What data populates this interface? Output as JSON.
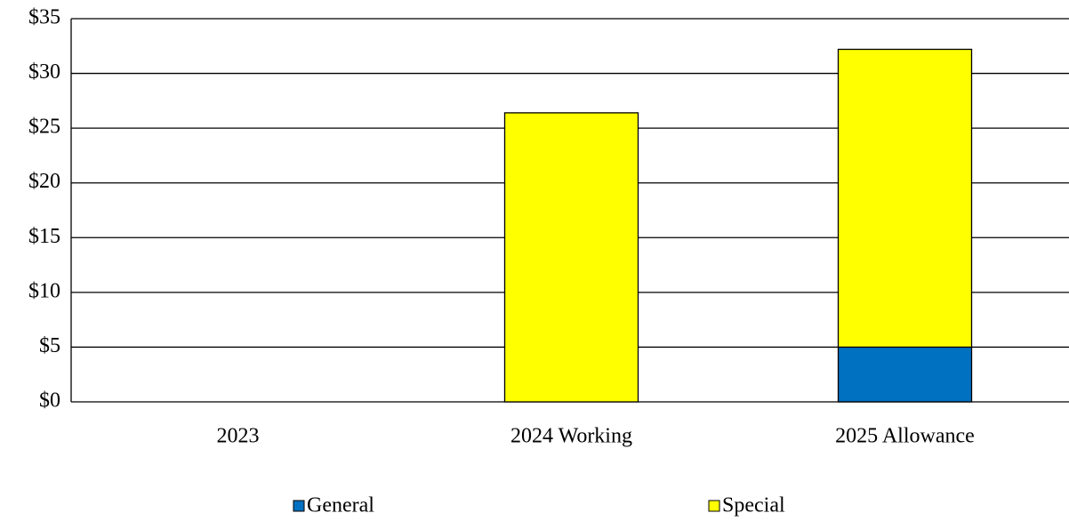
{
  "chart_data": {
    "type": "stacked_bar",
    "categories": [
      "2023",
      "2024 Working",
      "2025 Allowance"
    ],
    "series": [
      {
        "name": "General",
        "color": "#0070c0",
        "values": [
          0,
          0,
          5
        ]
      },
      {
        "name": "Special",
        "color": "#ffff00",
        "values": [
          0,
          26.4,
          27.2
        ]
      }
    ],
    "ylim": [
      0,
      35
    ],
    "yticks": [
      {
        "value": 0,
        "label": "$0"
      },
      {
        "value": 5,
        "label": "$5"
      },
      {
        "value": 10,
        "label": "$10"
      },
      {
        "value": 15,
        "label": "$15"
      },
      {
        "value": 20,
        "label": "$20"
      },
      {
        "value": 25,
        "label": "$25"
      },
      {
        "value": 30,
        "label": "$30"
      },
      {
        "value": 35,
        "label": "$35"
      }
    ],
    "grid": true,
    "legend": "bottom"
  }
}
